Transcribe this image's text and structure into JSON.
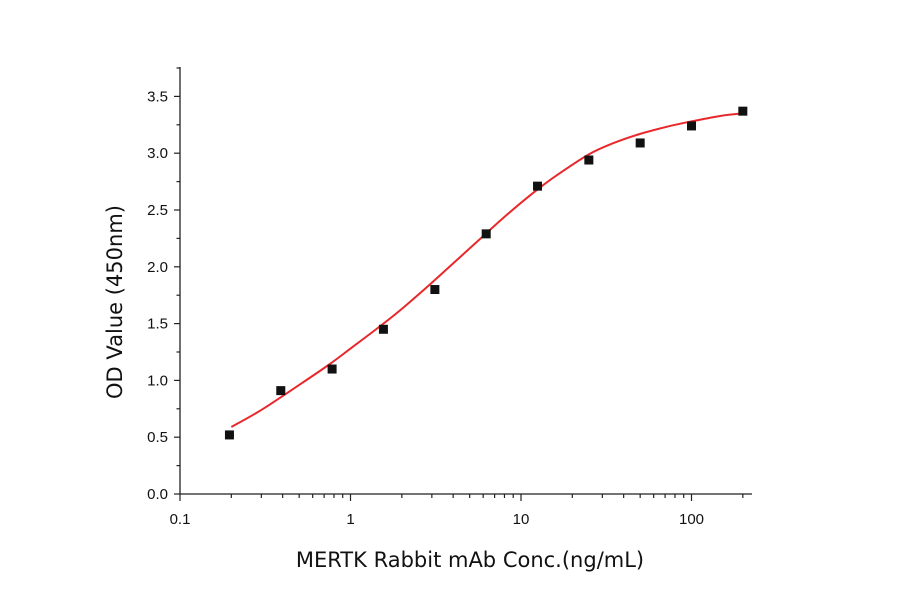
{
  "chart_data": {
    "type": "scatter",
    "xlabel": "MERTK Rabbit mAb Conc.(ng/mL)",
    "ylabel": "OD Value (450nm)",
    "x_scale": "log",
    "xlim": [
      0.1,
      210
    ],
    "ylim": [
      0,
      3.75
    ],
    "x_ticks": [
      0.1,
      1,
      10,
      100
    ],
    "x_tick_labels": [
      "0.1",
      "1",
      "10",
      "100"
    ],
    "y_ticks": [
      0,
      0.5,
      1,
      1.5,
      2,
      2.5,
      3,
      3.5
    ],
    "y_tick_labels": [
      "0.0",
      "0.5",
      "1.0",
      "1.5",
      "2.0",
      "2.5",
      "3.0",
      "3.5"
    ],
    "grid": false,
    "legend": "none",
    "series": [
      {
        "type": "scatter",
        "marker": "square",
        "color": "#111111",
        "x": [
          0.195,
          0.39,
          0.78,
          1.56,
          3.125,
          6.25,
          12.5,
          25,
          50,
          100,
          200
        ],
        "y": [
          0.52,
          0.91,
          1.1,
          1.45,
          1.8,
          2.29,
          2.71,
          2.94,
          3.09,
          3.24,
          3.37
        ]
      },
      {
        "type": "line",
        "fit": "four-parameter logistic",
        "color": "#e8282b",
        "x": [
          0.2,
          0.3,
          0.5,
          0.75,
          1,
          1.5,
          2,
          3,
          4,
          6,
          8,
          12,
          16,
          25,
          35,
          50,
          75,
          100,
          150,
          200
        ],
        "y": [
          0.59,
          0.74,
          0.96,
          1.14,
          1.28,
          1.48,
          1.63,
          1.86,
          2.03,
          2.27,
          2.44,
          2.66,
          2.8,
          2.99,
          3.09,
          3.17,
          3.24,
          3.28,
          3.33,
          3.35
        ]
      }
    ]
  }
}
